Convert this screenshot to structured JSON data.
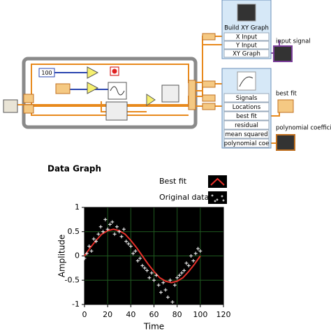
{
  "diagram": {
    "constant": "100",
    "build_xy_graph": {
      "title": "Build XY Graph",
      "terminals": [
        "X Input",
        "Y Input",
        "XY Graph"
      ]
    },
    "fit_node": {
      "terminals": [
        "Signals",
        "Locations",
        "best fit",
        "residual",
        "mean squared",
        "polynomial coe"
      ]
    },
    "indicators": [
      "input signal",
      "best fit",
      "polynomial coefficie"
    ]
  },
  "chart_data": {
    "type": "line",
    "title": "Data Graph",
    "x_label": "Time",
    "y_label": "Amplitude",
    "xlim": [
      0,
      120
    ],
    "xticks": [
      0,
      20,
      40,
      60,
      80,
      100,
      120
    ],
    "ylim": [
      -1,
      1
    ],
    "yticks": [
      -1,
      -0.5,
      0,
      0.5,
      1
    ],
    "grid": true,
    "grid_color": "#1f5a1f",
    "background": "#000000",
    "series": [
      {
        "name": "Best fit",
        "type": "line",
        "color": "#e8302a",
        "x": [
          0,
          5,
          10,
          15,
          20,
          25,
          30,
          35,
          40,
          45,
          50,
          55,
          60,
          65,
          70,
          75,
          80,
          85,
          90,
          95,
          100
        ],
        "values": [
          0,
          0.17,
          0.32,
          0.45,
          0.52,
          0.55,
          0.52,
          0.45,
          0.32,
          0.17,
          0,
          -0.17,
          -0.32,
          -0.45,
          -0.52,
          -0.55,
          -0.52,
          -0.45,
          -0.32,
          -0.17,
          0
        ]
      },
      {
        "name": "Original data",
        "type": "scatter",
        "color": "#ffffff",
        "x": [
          0,
          2,
          4,
          6,
          8,
          10,
          12,
          14,
          16,
          18,
          20,
          22,
          24,
          26,
          28,
          30,
          32,
          34,
          36,
          38,
          40,
          42,
          44,
          46,
          48,
          50,
          52,
          54,
          56,
          58,
          60,
          62,
          64,
          66,
          68,
          70,
          72,
          74,
          76,
          78,
          80,
          82,
          84,
          86,
          88,
          90,
          92,
          94,
          96,
          98,
          100
        ],
        "values": [
          -0.05,
          0.05,
          0.2,
          0.1,
          0.35,
          0.3,
          0.45,
          0.6,
          0.5,
          0.75,
          0.55,
          0.65,
          0.7,
          0.45,
          0.6,
          0.5,
          0.4,
          0.55,
          0.3,
          0.25,
          0.2,
          0.05,
          0.1,
          -0.1,
          -0.05,
          -0.2,
          -0.25,
          -0.3,
          -0.45,
          -0.35,
          -0.5,
          -0.4,
          -0.6,
          -0.75,
          -0.55,
          -0.7,
          -0.85,
          -0.5,
          -0.95,
          -0.6,
          -0.45,
          -0.4,
          -0.35,
          -0.3,
          -0.15,
          -0.2,
          0.0,
          -0.1,
          0.05,
          0.15,
          0.1
        ]
      }
    ]
  }
}
